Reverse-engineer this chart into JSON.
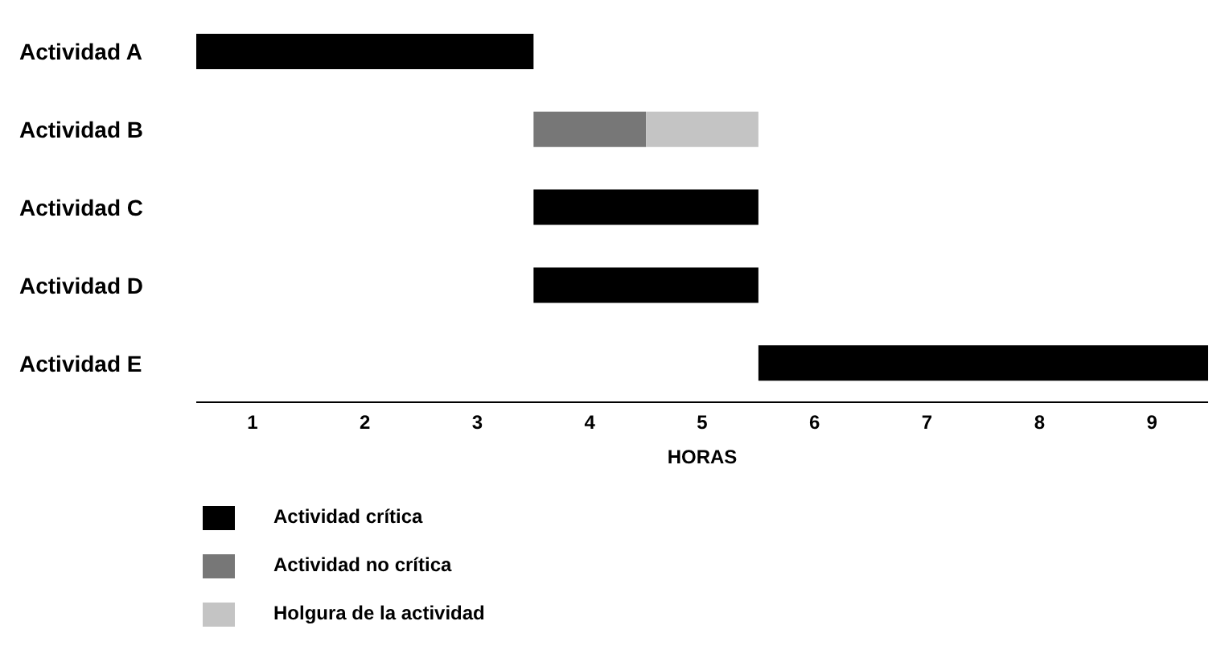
{
  "chart_data": {
    "type": "bar",
    "orientation": "horizontal",
    "xlabel": "HORAS",
    "categories": [
      "Actividad A",
      "Actividad B",
      "Actividad C",
      "Actividad D",
      "Actividad E"
    ],
    "series": [
      {
        "name": "Actividad crítica",
        "color": "#000000",
        "values": [
          3,
          null,
          2,
          2,
          4
        ],
        "base": [
          0.5,
          null,
          3.5,
          3.5,
          5.5
        ]
      },
      {
        "name": "Actividad no crítica",
        "color": "#777777",
        "values": [
          null,
          1,
          null,
          null,
          null
        ],
        "base": [
          null,
          3.5,
          null,
          null,
          null
        ]
      },
      {
        "name": "Holgura de la actividad",
        "color": "#c4c4c4",
        "values": [
          null,
          1,
          null,
          null,
          null
        ],
        "base": [
          null,
          4.5,
          null,
          null,
          null
        ]
      }
    ],
    "xlim": [
      0.5,
      9.5
    ],
    "xticks": [
      1,
      2,
      3,
      4,
      5,
      6,
      7,
      8,
      9
    ],
    "grid": false,
    "legend": "bottom"
  }
}
